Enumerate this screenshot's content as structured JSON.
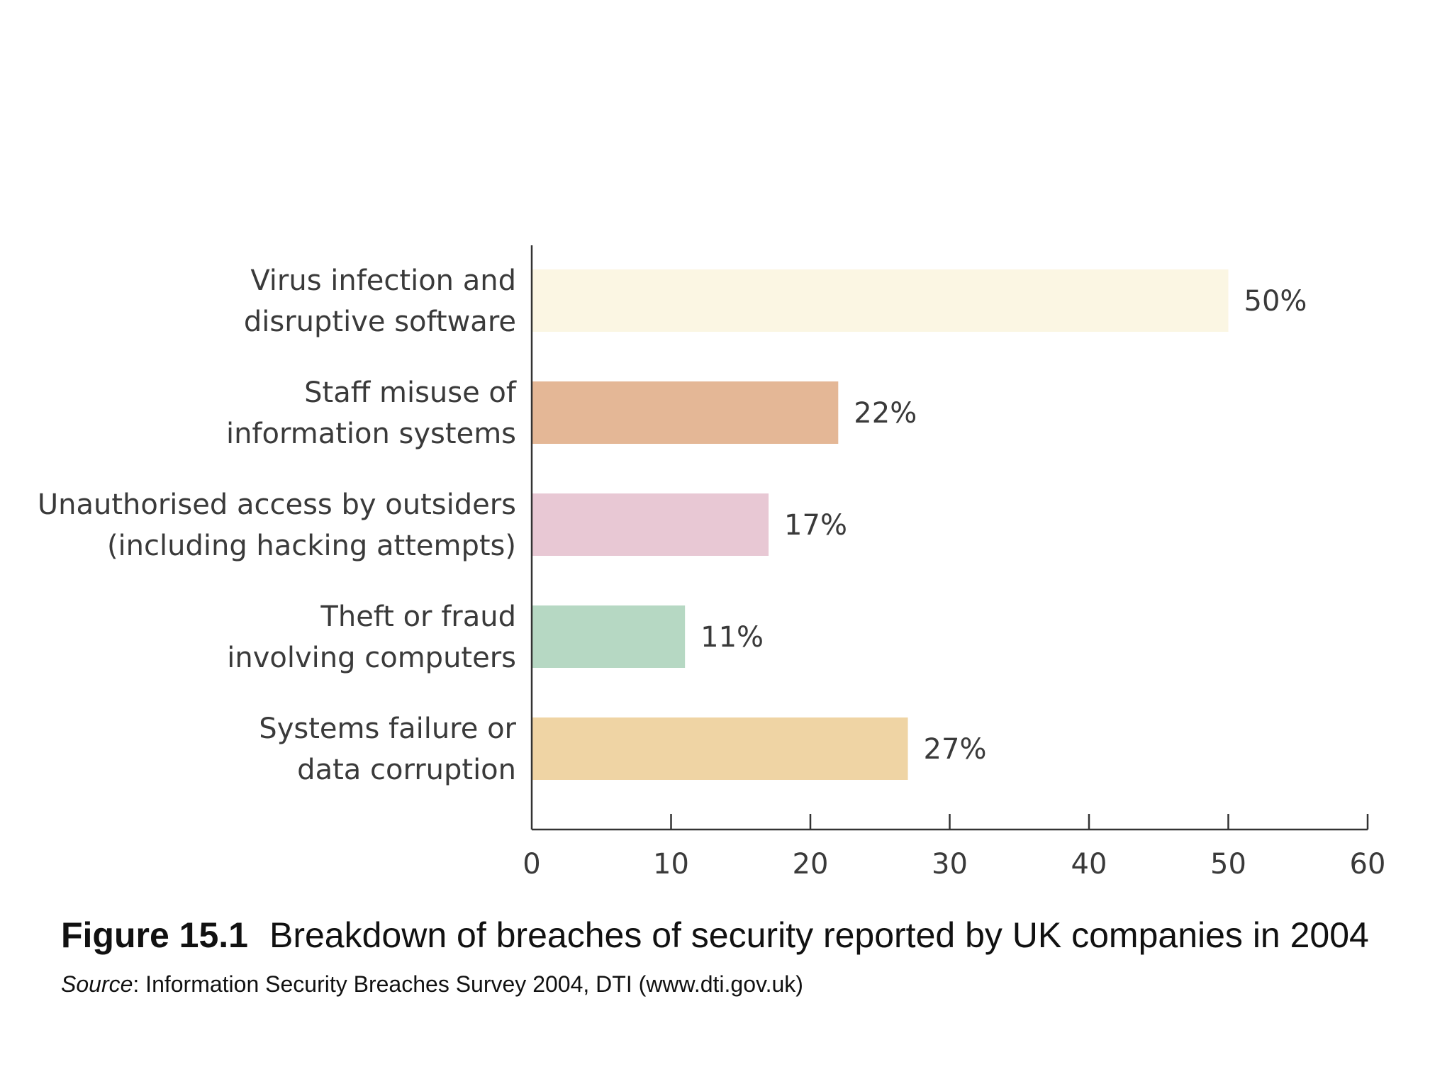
{
  "chart_data": {
    "type": "bar",
    "orientation": "horizontal",
    "categories": [
      [
        "Virus infection and",
        "disruptive software"
      ],
      [
        "Staff misuse of",
        "information systems"
      ],
      [
        "Unauthorised access by outsiders",
        "(including hacking attempts)"
      ],
      [
        "Theft or fraud",
        "involving computers"
      ],
      [
        "Systems failure or",
        "data corruption"
      ]
    ],
    "values": [
      50,
      22,
      17,
      11,
      27
    ],
    "value_labels": [
      "50%",
      "22%",
      "17%",
      "11%",
      "27%"
    ],
    "colors": [
      "#fbf6e3",
      "#e4b796",
      "#e8c8d4",
      "#b6d8c3",
      "#efd4a4"
    ],
    "xlim": [
      0,
      60
    ],
    "xticks": [
      0,
      10,
      20,
      30,
      40,
      50,
      60
    ],
    "grid": false,
    "xlabel": "",
    "ylabel": ""
  },
  "caption": {
    "figure_number": "Figure 15.1",
    "title": "Breakdown of breaches of security reported by UK companies in 2004",
    "source_label": "Source",
    "source_text": ": Information Security Breaches Survey 2004, DTI (www.dti.gov.uk)"
  }
}
